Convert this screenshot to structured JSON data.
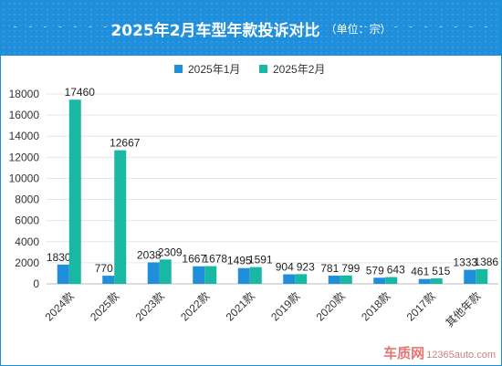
{
  "header": {
    "title": "2025年2月车型年款投诉对比",
    "unit": "（单位：宗）"
  },
  "legend": {
    "items": [
      {
        "label": "2025年1月",
        "color": "#1f8edb"
      },
      {
        "label": "2025年2月",
        "color": "#18b8a4"
      }
    ]
  },
  "watermark": {
    "logo": "车质网",
    "url": "12365auto.com"
  },
  "chart_data": {
    "type": "bar",
    "title": "2025年2月车型年款投诉对比",
    "subtitle": "（单位：宗）",
    "categories": [
      "2024款",
      "2025款",
      "2023款",
      "2022款",
      "2021款",
      "2019款",
      "2020款",
      "2018款",
      "2017款",
      "其他年款"
    ],
    "series": [
      {
        "name": "2025年1月",
        "color": "#1f8edb",
        "values": [
          1830,
          770,
          2038,
          1667,
          1495,
          904,
          781,
          579,
          461,
          1333
        ]
      },
      {
        "name": "2025年2月",
        "color": "#18b8a4",
        "values": [
          17460,
          12667,
          2309,
          1678,
          1591,
          923,
          799,
          643,
          515,
          1386
        ]
      }
    ],
    "ylim": [
      0,
      18000
    ],
    "yticks": [
      0,
      2000,
      4000,
      6000,
      8000,
      10000,
      12000,
      14000,
      16000,
      18000
    ],
    "grid": true,
    "legend_position": "top-center",
    "xlabel": "",
    "ylabel": ""
  }
}
